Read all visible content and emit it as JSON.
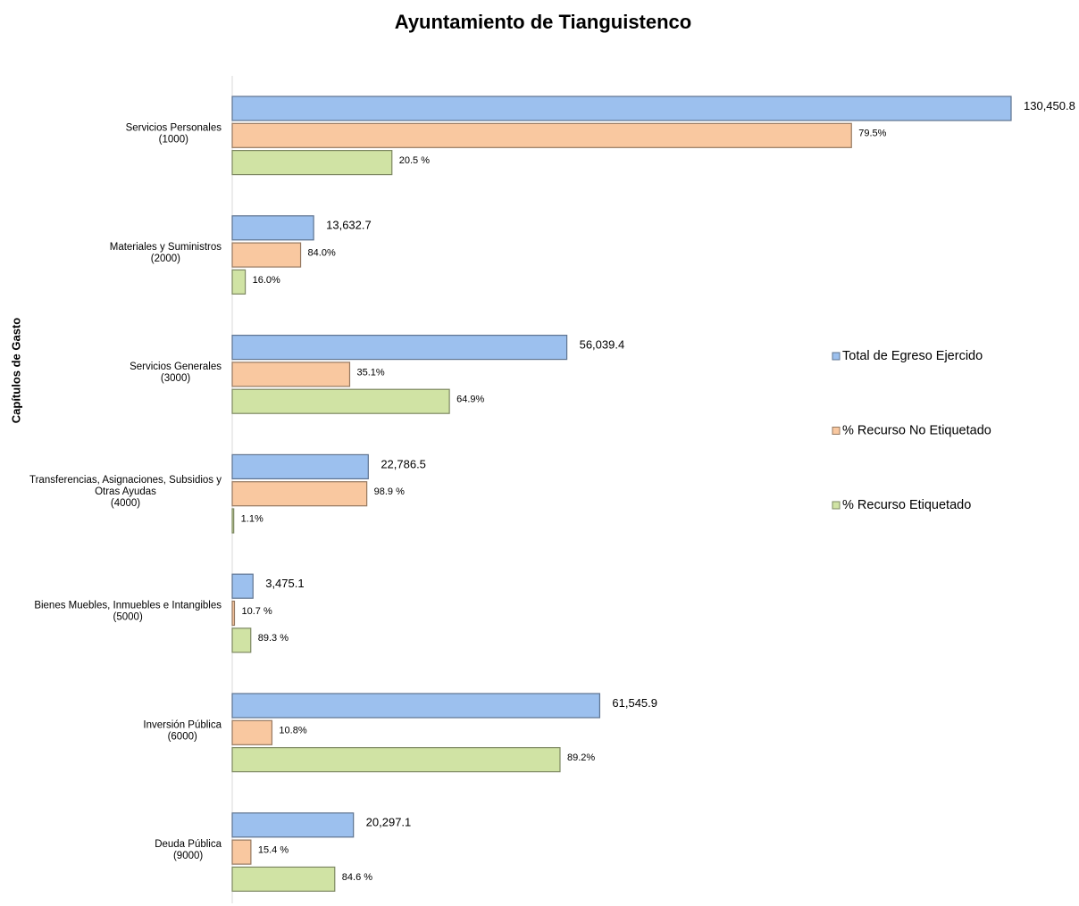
{
  "chart_data": {
    "type": "bar",
    "orientation": "horizontal",
    "title": "Ayuntamiento de Tianguistenco",
    "y_label": "Capítulos de Gasto",
    "categories": [
      [
        "Servicios Personales",
        "(1000)"
      ],
      [
        "Materiales y Suministros",
        "(2000)"
      ],
      [
        "Servicios Generales",
        "(3000)"
      ],
      [
        "Transferencias, Asignaciones, Subsidios y",
        "Otras Ayudas",
        "(4000)"
      ],
      [
        "Bienes Muebles, Inmuebles e Intangibles",
        "(5000)"
      ],
      [
        "Inversión Pública",
        "(6000)"
      ],
      [
        "Deuda Pública",
        "(9000)"
      ]
    ],
    "series": [
      {
        "name": "Total de Egreso Ejercido",
        "color": "#9cc0ee",
        "values": [
          130450.8,
          13632.7,
          56039.4,
          22786.5,
          3475.1,
          61545.9,
          20297.1
        ],
        "value_labels": [
          "130,450.8",
          "13,632.7",
          "56,039.4",
          "22,786.5",
          "3,475.1",
          "61,545.9",
          "20,297.1"
        ]
      },
      {
        "name": "% Recurso No Etiquetado",
        "color": "#f9c8a0",
        "values": [
          79.5,
          84.0,
          35.1,
          98.9,
          10.7,
          10.8,
          15.4
        ],
        "value_labels": [
          "79.5%",
          "84.0%",
          "35.1%",
          "98.9 %",
          "10.7 %",
          "10.8%",
          "15.4 %"
        ]
      },
      {
        "name": "% Recurso Etiquetado",
        "color": "#d0e3a4",
        "values": [
          20.5,
          16.0,
          64.9,
          1.1,
          89.3,
          89.2,
          84.6
        ],
        "value_labels": [
          "20.5 %",
          "16.0%",
          "64.9%",
          "1.1%",
          "89.3 %",
          "89.2%",
          "84.6 %"
        ]
      }
    ],
    "legend": "right"
  }
}
